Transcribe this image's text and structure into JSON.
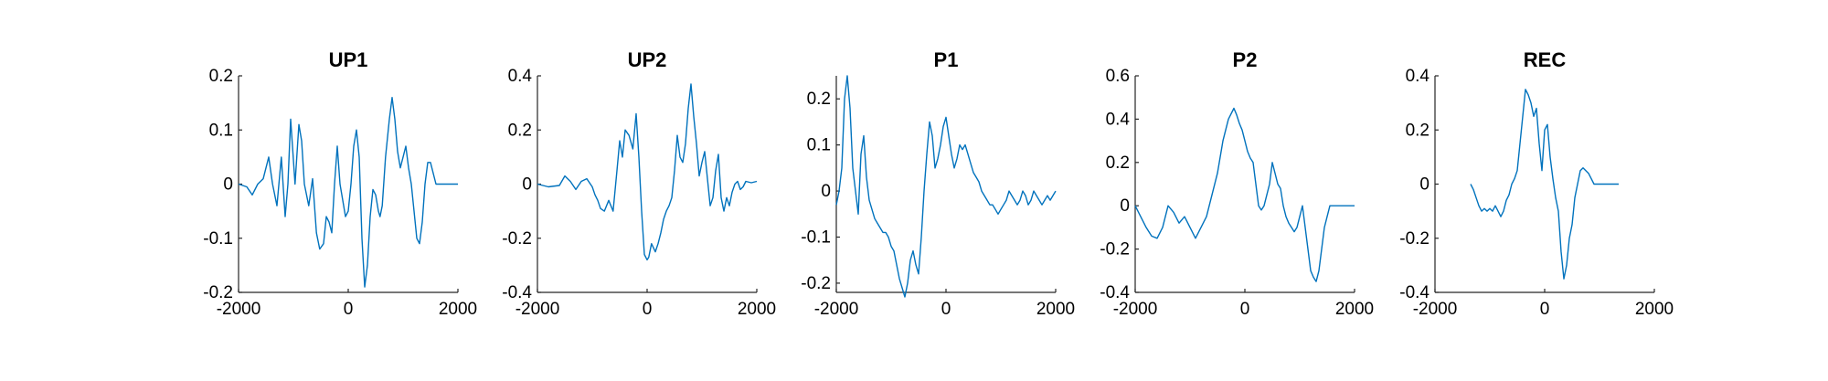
{
  "figure": {
    "background": "#ffffff",
    "line_color": "#0072BD",
    "axis_color": "#262626"
  },
  "chart_data": [
    {
      "type": "line",
      "title": "UP1",
      "xlim": [
        -2000,
        2000
      ],
      "ylim": [
        -0.2,
        0.2
      ],
      "xticks": [
        -2000,
        0,
        2000
      ],
      "yticks": [
        -0.2,
        -0.1,
        0,
        0.1,
        0.2
      ],
      "xtick_labels": [
        "-2000",
        "0",
        "2000"
      ],
      "ytick_labels": [
        "-0.2",
        "-0.1",
        "0",
        "0.1",
        "0.2"
      ],
      "series": [
        {
          "x": [
            -2000,
            -1850,
            -1750,
            -1650,
            -1550,
            -1450,
            -1380,
            -1300,
            -1220,
            -1150,
            -1100,
            -1050,
            -970,
            -900,
            -850,
            -800,
            -720,
            -650,
            -580,
            -520,
            -450,
            -400,
            -350,
            -300,
            -250,
            -200,
            -150,
            -100,
            -50,
            0,
            50,
            100,
            150,
            200,
            250,
            300,
            350,
            400,
            450,
            500,
            550,
            580,
            620,
            680,
            750,
            800,
            850,
            900,
            950,
            1000,
            1050,
            1100,
            1150,
            1200,
            1250,
            1300,
            1350,
            1400,
            1450,
            1500,
            1550,
            1600,
            1650,
            1700,
            1750,
            1800,
            1850,
            1900,
            1950,
            2000
          ],
          "y": [
            0,
            -0.005,
            -0.02,
            0,
            0.01,
            0.05,
            0.0,
            -0.04,
            0.05,
            -0.06,
            0.0,
            0.12,
            0.0,
            0.11,
            0.08,
            0.0,
            -0.04,
            0.01,
            -0.09,
            -0.12,
            -0.11,
            -0.06,
            -0.07,
            -0.09,
            0.0,
            0.07,
            0.0,
            -0.03,
            -0.06,
            -0.05,
            0.0,
            0.07,
            0.1,
            0.05,
            -0.1,
            -0.19,
            -0.15,
            -0.06,
            -0.01,
            -0.02,
            -0.05,
            -0.06,
            -0.04,
            0.05,
            0.12,
            0.16,
            0.12,
            0.06,
            0.03,
            0.05,
            0.07,
            0.03,
            0.0,
            -0.05,
            -0.1,
            -0.11,
            -0.07,
            0.0,
            0.04,
            0.04,
            0.02,
            0.0,
            0.0,
            0.0,
            0.0,
            0.0,
            0.0,
            0.0,
            0.0,
            0.0
          ]
        }
      ]
    },
    {
      "type": "line",
      "title": "UP2",
      "xlim": [
        -2000,
        2000
      ],
      "ylim": [
        -0.4,
        0.4
      ],
      "xticks": [
        -2000,
        0,
        2000
      ],
      "yticks": [
        -0.4,
        -0.2,
        0,
        0.2,
        0.4
      ],
      "xtick_labels": [
        "-2000",
        "0",
        "2000"
      ],
      "ytick_labels": [
        "-0.4",
        "-0.2",
        "0",
        "0.2",
        "0.4"
      ],
      "series": [
        {
          "x": [
            -2000,
            -1800,
            -1600,
            -1500,
            -1400,
            -1300,
            -1200,
            -1100,
            -1000,
            -950,
            -900,
            -850,
            -780,
            -700,
            -620,
            -550,
            -500,
            -450,
            -400,
            -330,
            -260,
            -200,
            -150,
            -100,
            -50,
            0,
            30,
            80,
            150,
            200,
            250,
            300,
            350,
            400,
            450,
            500,
            550,
            600,
            650,
            700,
            750,
            800,
            850,
            900,
            950,
            1000,
            1050,
            1100,
            1150,
            1200,
            1250,
            1300,
            1350,
            1400,
            1450,
            1500,
            1550,
            1600,
            1650,
            1700,
            1750,
            1800,
            1900,
            2000
          ],
          "y": [
            0,
            -0.01,
            -0.005,
            0.03,
            0.01,
            -0.02,
            0.01,
            0.02,
            -0.01,
            -0.04,
            -0.06,
            -0.09,
            -0.1,
            -0.06,
            -0.1,
            0.05,
            0.16,
            0.1,
            0.2,
            0.18,
            0.13,
            0.26,
            0.1,
            -0.1,
            -0.26,
            -0.28,
            -0.27,
            -0.22,
            -0.25,
            -0.22,
            -0.18,
            -0.13,
            -0.1,
            -0.08,
            -0.05,
            0.05,
            0.18,
            0.1,
            0.08,
            0.15,
            0.28,
            0.37,
            0.25,
            0.15,
            0.03,
            0.08,
            0.12,
            0.02,
            -0.08,
            -0.05,
            0.05,
            0.11,
            -0.05,
            -0.1,
            -0.05,
            -0.08,
            -0.03,
            0.0,
            0.01,
            -0.02,
            -0.01,
            0.01,
            0.005,
            0.01
          ]
        }
      ]
    },
    {
      "type": "line",
      "title": "P1",
      "xlim": [
        -2000,
        2000
      ],
      "ylim": [
        -0.22,
        0.25
      ],
      "xticks": [
        -2000,
        0,
        2000
      ],
      "yticks": [
        -0.2,
        -0.1,
        0,
        0.1,
        0.2
      ],
      "xtick_labels": [
        "-2000",
        "0",
        "2000"
      ],
      "ytick_labels": [
        "-0.2",
        "-0.1",
        "0",
        "0.1",
        "0.2"
      ],
      "series": [
        {
          "x": [
            -2000,
            -1950,
            -1900,
            -1850,
            -1800,
            -1750,
            -1700,
            -1650,
            -1600,
            -1550,
            -1500,
            -1450,
            -1400,
            -1350,
            -1300,
            -1250,
            -1200,
            -1150,
            -1100,
            -1050,
            -1000,
            -950,
            -900,
            -850,
            -800,
            -750,
            -700,
            -650,
            -600,
            -550,
            -500,
            -450,
            -400,
            -350,
            -300,
            -250,
            -200,
            -150,
            -100,
            -50,
            0,
            50,
            100,
            150,
            200,
            250,
            300,
            350,
            400,
            450,
            500,
            550,
            600,
            650,
            700,
            750,
            800,
            850,
            900,
            950,
            1000,
            1050,
            1100,
            1150,
            1200,
            1250,
            1300,
            1350,
            1400,
            1450,
            1500,
            1550,
            1600,
            1650,
            1700,
            1750,
            1800,
            1850,
            1900,
            1950,
            2000
          ],
          "y": [
            -0.03,
            0.0,
            0.05,
            0.2,
            0.25,
            0.18,
            0.05,
            0.0,
            -0.05,
            0.08,
            0.12,
            0.03,
            -0.02,
            -0.04,
            -0.06,
            -0.07,
            -0.08,
            -0.09,
            -0.09,
            -0.1,
            -0.12,
            -0.13,
            -0.16,
            -0.19,
            -0.21,
            -0.23,
            -0.2,
            -0.15,
            -0.13,
            -0.16,
            -0.18,
            -0.1,
            0.0,
            0.08,
            0.15,
            0.12,
            0.05,
            0.07,
            0.1,
            0.14,
            0.16,
            0.12,
            0.08,
            0.05,
            0.07,
            0.1,
            0.09,
            0.1,
            0.08,
            0.06,
            0.04,
            0.03,
            0.02,
            0.0,
            -0.01,
            -0.02,
            -0.03,
            -0.03,
            -0.04,
            -0.05,
            -0.04,
            -0.03,
            -0.02,
            0.0,
            -0.01,
            -0.02,
            -0.03,
            -0.02,
            0.0,
            -0.01,
            -0.03,
            -0.02,
            0.0,
            -0.01,
            -0.02,
            -0.03,
            -0.02,
            -0.01,
            -0.02,
            -0.01,
            0.0
          ]
        }
      ]
    },
    {
      "type": "line",
      "title": "P2",
      "xlim": [
        -2000,
        2000
      ],
      "ylim": [
        -0.4,
        0.6
      ],
      "xticks": [
        -2000,
        0,
        2000
      ],
      "yticks": [
        -0.4,
        -0.2,
        0,
        0.2,
        0.4,
        0.6
      ],
      "xtick_labels": [
        "-2000",
        "0",
        "2000"
      ],
      "ytick_labels": [
        "-0.4",
        "-0.2",
        "0",
        "0.2",
        "0.4",
        "0.6"
      ],
      "series": [
        {
          "x": [
            -2000,
            -1900,
            -1800,
            -1700,
            -1600,
            -1500,
            -1450,
            -1400,
            -1300,
            -1200,
            -1100,
            -1000,
            -900,
            -800,
            -700,
            -600,
            -500,
            -400,
            -300,
            -200,
            -150,
            -100,
            -50,
            0,
            50,
            100,
            150,
            200,
            250,
            300,
            350,
            400,
            450,
            500,
            550,
            600,
            650,
            700,
            750,
            800,
            850,
            900,
            950,
            1000,
            1050,
            1100,
            1150,
            1200,
            1250,
            1300,
            1350,
            1400,
            1450,
            1500,
            1550,
            1600,
            1650,
            1700,
            1750,
            1800,
            1850,
            1900,
            1950,
            2000
          ],
          "y": [
            0.0,
            -0.05,
            -0.1,
            -0.14,
            -0.15,
            -0.1,
            -0.05,
            0.0,
            -0.03,
            -0.08,
            -0.05,
            -0.1,
            -0.15,
            -0.1,
            -0.05,
            0.05,
            0.15,
            0.3,
            0.4,
            0.45,
            0.42,
            0.38,
            0.35,
            0.3,
            0.25,
            0.22,
            0.2,
            0.1,
            0.0,
            -0.02,
            0.0,
            0.05,
            0.1,
            0.2,
            0.15,
            0.1,
            0.08,
            0.0,
            -0.05,
            -0.08,
            -0.1,
            -0.12,
            -0.1,
            -0.05,
            0.0,
            -0.1,
            -0.2,
            -0.3,
            -0.33,
            -0.35,
            -0.3,
            -0.2,
            -0.1,
            -0.05,
            0.0,
            0.0,
            0.0,
            0.0,
            0.0,
            0.0,
            0.0,
            0.0,
            0.0,
            0.0
          ]
        }
      ]
    },
    {
      "type": "line",
      "title": "REC",
      "xlim": [
        -2000,
        2000
      ],
      "ylim": [
        -0.4,
        0.4
      ],
      "xticks": [
        -2000,
        0,
        2000
      ],
      "yticks": [
        -0.4,
        -0.2,
        0,
        0.2,
        0.4
      ],
      "xtick_labels": [
        "-2000",
        "0",
        "2000"
      ],
      "ytick_labels": [
        "-0.4",
        "-0.2",
        "0",
        "0.2",
        "0.4"
      ],
      "series": [
        {
          "x": [
            -1350,
            -1300,
            -1250,
            -1200,
            -1150,
            -1100,
            -1050,
            -1000,
            -950,
            -900,
            -850,
            -800,
            -750,
            -700,
            -650,
            -600,
            -550,
            -500,
            -450,
            -400,
            -350,
            -300,
            -250,
            -200,
            -150,
            -100,
            -50,
            0,
            50,
            100,
            150,
            200,
            250,
            300,
            350,
            400,
            450,
            500,
            550,
            600,
            650,
            700,
            750,
            800,
            850,
            900,
            950,
            1000,
            1050,
            1100,
            1150,
            1200,
            1250,
            1300,
            1350
          ],
          "y": [
            0.0,
            -0.02,
            -0.05,
            -0.08,
            -0.1,
            -0.09,
            -0.1,
            -0.09,
            -0.1,
            -0.08,
            -0.1,
            -0.12,
            -0.1,
            -0.06,
            -0.04,
            0.0,
            0.02,
            0.05,
            0.15,
            0.25,
            0.35,
            0.33,
            0.3,
            0.25,
            0.28,
            0.15,
            0.05,
            0.2,
            0.22,
            0.1,
            0.02,
            -0.05,
            -0.1,
            -0.25,
            -0.35,
            -0.3,
            -0.2,
            -0.15,
            -0.05,
            0.0,
            0.05,
            0.06,
            0.05,
            0.04,
            0.02,
            0.0,
            0.0,
            0.0,
            0.0,
            0.0,
            0.0,
            0.0,
            0.0,
            0.0,
            0.0
          ]
        }
      ]
    }
  ]
}
